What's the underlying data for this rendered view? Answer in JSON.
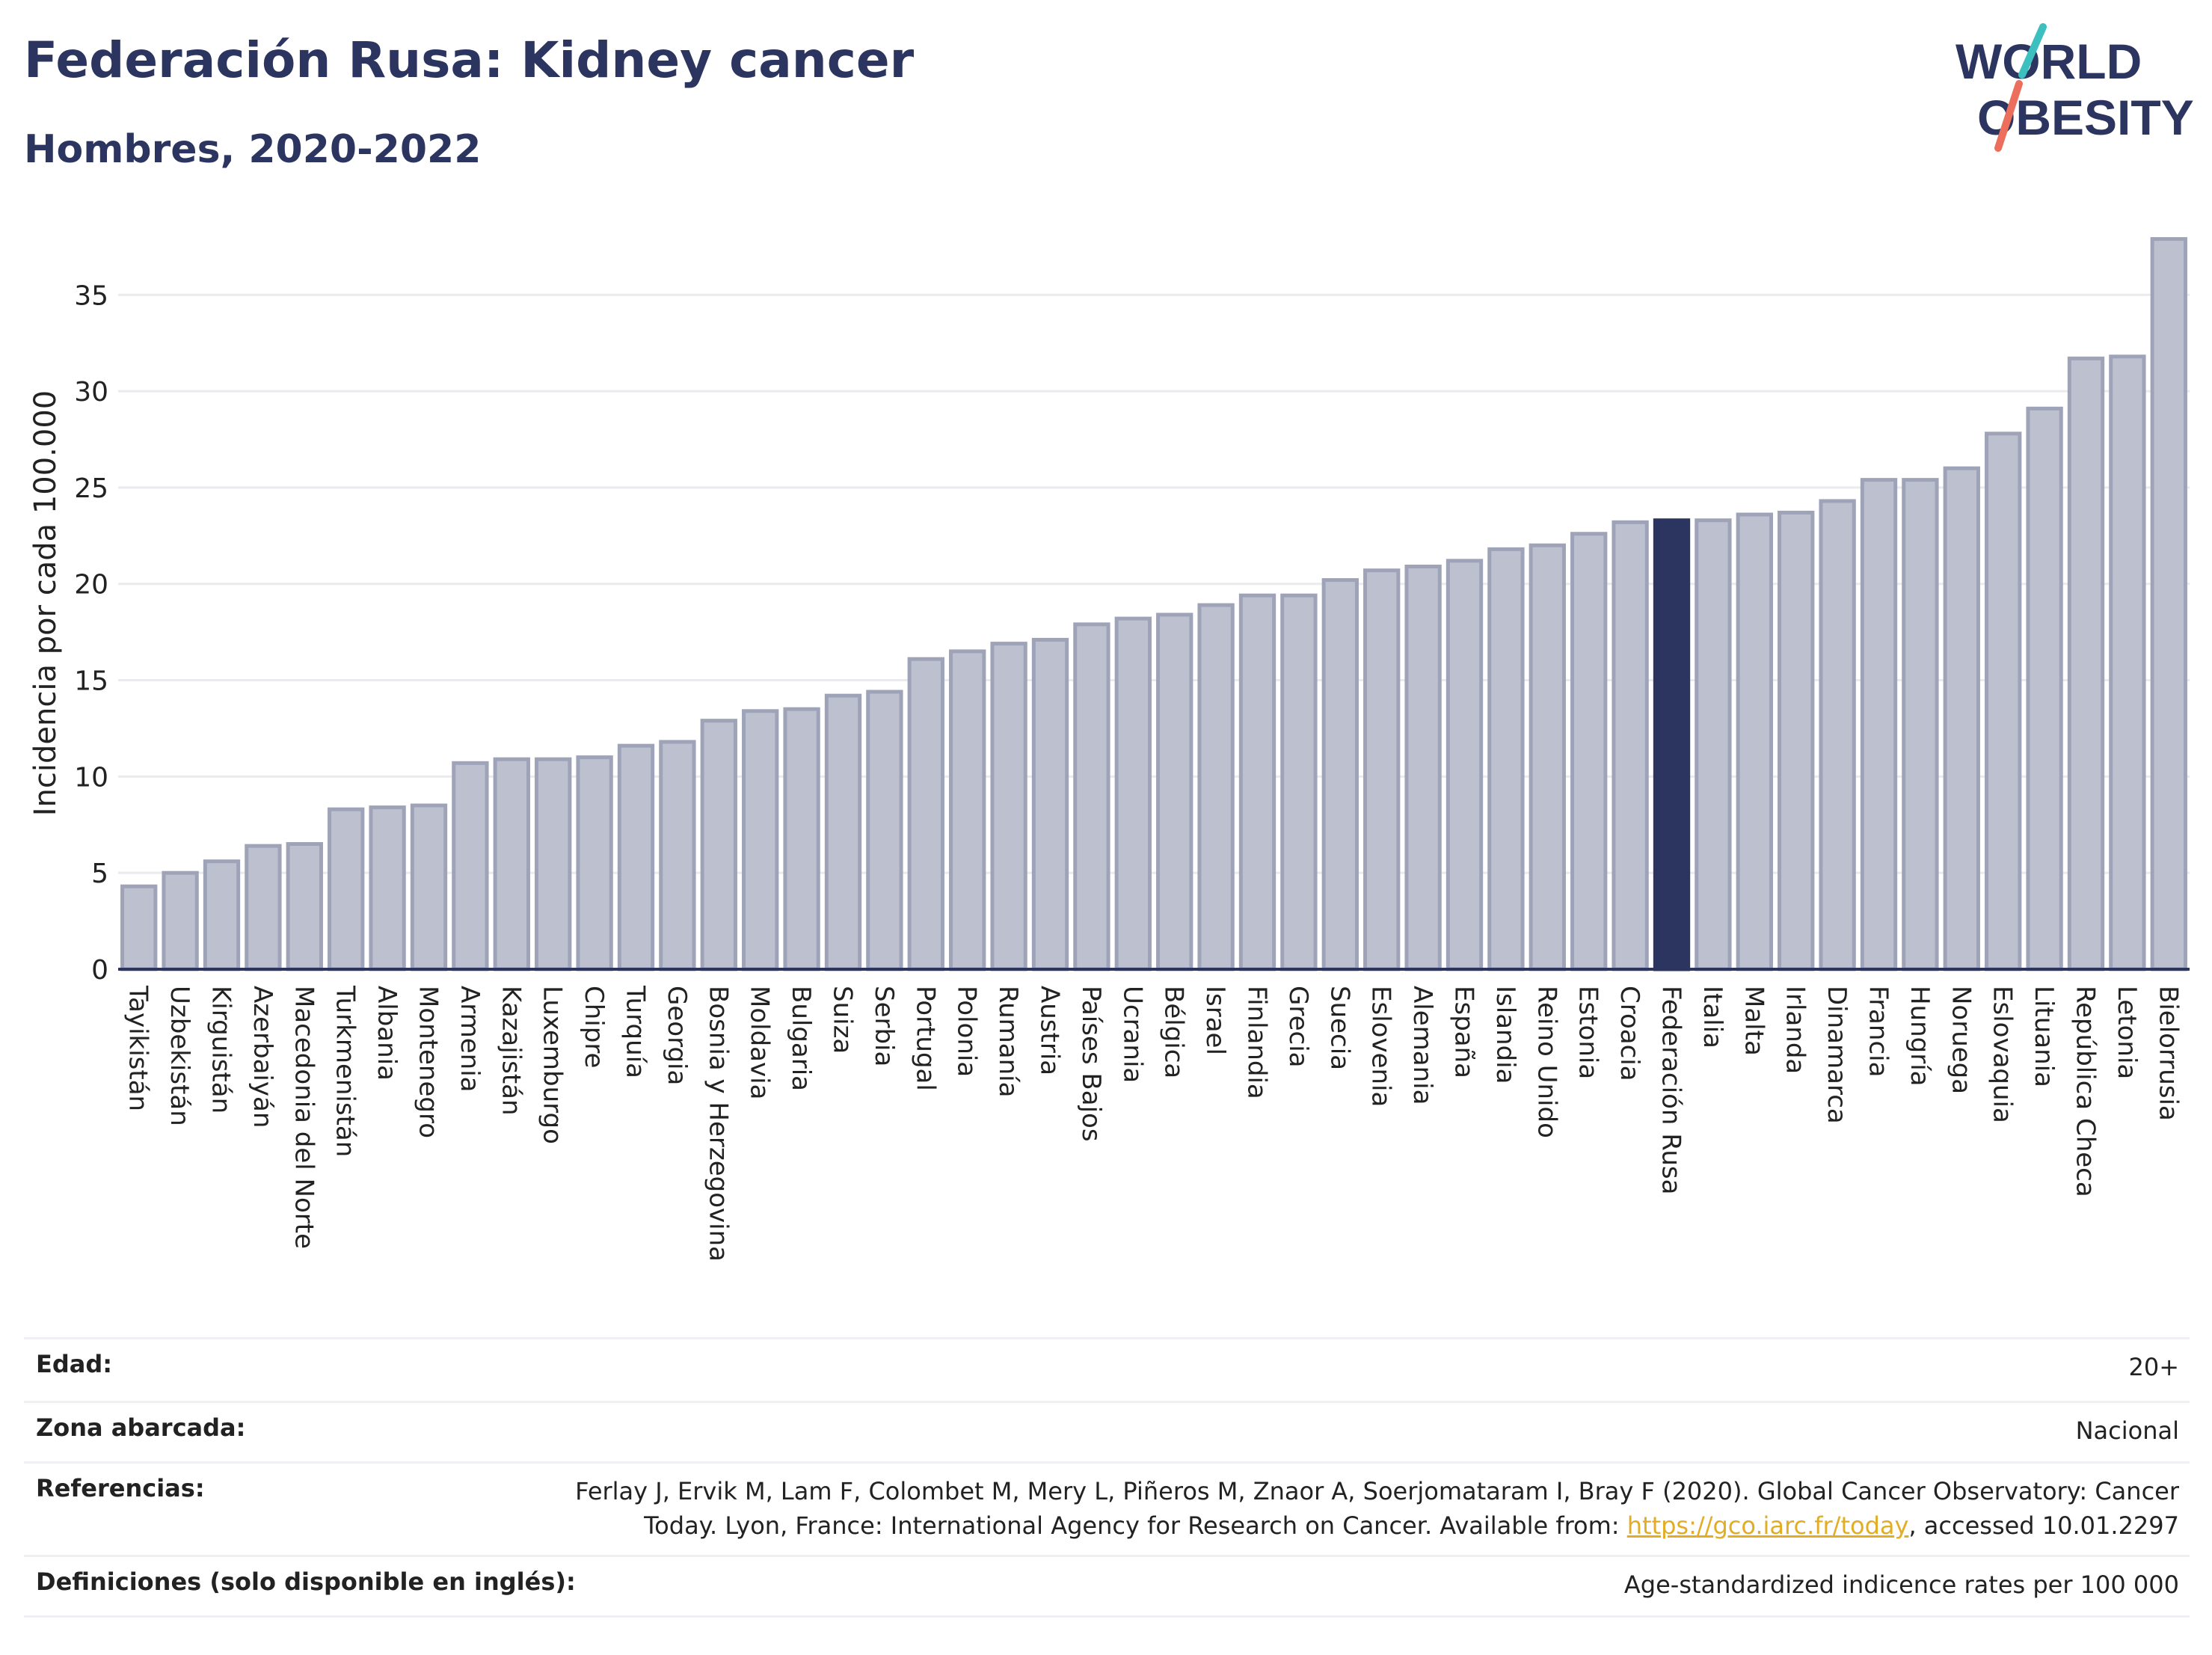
{
  "header": {
    "title": "Federación Rusa: Kidney cancer",
    "subtitle": "Hombres, 2020-2022",
    "logo_line1": "WORLD",
    "logo_line2": "OBESITY"
  },
  "chart_data": {
    "type": "bar",
    "ylabel": "Incidencia por cada 100.000",
    "xlabel": "",
    "ylim": [
      0,
      38
    ],
    "yticks": [
      0,
      5,
      10,
      15,
      20,
      25,
      30,
      35
    ],
    "grid": true,
    "highlight": "Federación Rusa",
    "categories": [
      "Tayikistán",
      "Uzbekistán",
      "Kirguistán",
      "Azerbaiyán",
      "Macedonia del Norte",
      "Turkmenistán",
      "Albania",
      "Montenegro",
      "Armenia",
      "Kazajistán",
      "Luxemburgo",
      "Chipre",
      "Turquía",
      "Georgia",
      "Bosnia y Herzegovina",
      "Moldavia",
      "Bulgaria",
      "Suiza",
      "Serbia",
      "Portugal",
      "Polonia",
      "Rumanía",
      "Austria",
      "Países Bajos",
      "Ucrania",
      "Bélgica",
      "Israel",
      "Finlandia",
      "Grecia",
      "Suecia",
      "Eslovenia",
      "Alemania",
      "España",
      "Islandia",
      "Reino Unido",
      "Estonia",
      "Croacia",
      "Federación Rusa",
      "Italia",
      "Malta",
      "Irlanda",
      "Dinamarca",
      "Francia",
      "Hungría",
      "Noruega",
      "Eslovaquia",
      "Lituania",
      "República Checa",
      "Letonia",
      "Bielorrusia"
    ],
    "values": [
      4.3,
      5.0,
      5.6,
      6.4,
      6.5,
      8.3,
      8.4,
      8.5,
      10.7,
      10.9,
      10.9,
      11.0,
      11.6,
      11.8,
      12.9,
      13.4,
      13.5,
      14.2,
      14.4,
      16.1,
      16.5,
      16.9,
      17.1,
      17.9,
      18.2,
      18.4,
      18.9,
      19.4,
      19.4,
      20.2,
      20.7,
      20.9,
      21.2,
      21.8,
      22.0,
      22.6,
      23.2,
      23.3,
      23.3,
      23.6,
      23.7,
      24.3,
      25.4,
      25.4,
      26.0,
      27.8,
      29.1,
      31.7,
      31.8,
      37.9
    ],
    "colors": {
      "bar": "#bdc1cf",
      "bar_stroke": "#9ea3b8",
      "highlight": "#2b3560",
      "grid": "#e9ebee",
      "axis": "#2b3560",
      "text": "#222222"
    }
  },
  "meta": {
    "age_label": "Edad:",
    "age_value": "20+",
    "zone_label": "Zona abarcada:",
    "zone_value": "Nacional",
    "ref_label": "Referencias:",
    "ref_text_1": "Ferlay J, Ervik M, Lam F, Colombet M, Mery L, Piñeros M, Znaor A, Soerjomataram I, Bray F (2020). Global Cancer Observatory: Cancer",
    "ref_text_2": "Today. Lyon, France: International Agency for Research on Cancer. Available from: ",
    "ref_link": "https://gco.iarc.fr/today",
    "ref_text_3": ", accessed 10.01.2297",
    "def_label": "Definiciones (solo disponible en inglés):",
    "def_value": "Age-standardized indicence rates per 100 000"
  }
}
